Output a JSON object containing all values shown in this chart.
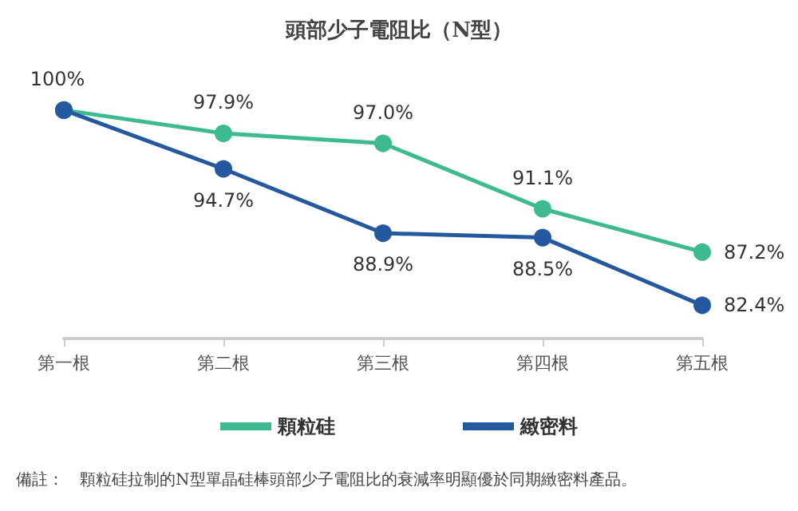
{
  "chart_data": {
    "type": "line",
    "title": "頭部少子電阻比（N型）",
    "categories": [
      "第一根",
      "第二根",
      "第三根",
      "第四根",
      "第五根"
    ],
    "series": [
      {
        "name": "顆粒硅",
        "color": "#3dbb8f",
        "values": [
          100,
          97.9,
          97.0,
          91.1,
          87.2
        ],
        "value_labels": [
          "100%",
          "97.9%",
          "97.0%",
          "91.1%",
          "87.2%"
        ]
      },
      {
        "name": "緻密料",
        "color": "#2459a0",
        "values": [
          100,
          94.7,
          88.9,
          88.5,
          82.4
        ],
        "value_labels": [
          null,
          "94.7%",
          "88.9%",
          "88.5%",
          "82.4%"
        ]
      }
    ],
    "marker": "circle",
    "line_style": "solid",
    "grid": false,
    "legend": "bottom",
    "annotations": [
      "備註：　顆粒硅拉制的N型單晶硅棒頭部少子電阻比的衰減率明顯優於同期緻密料產品。"
    ]
  }
}
